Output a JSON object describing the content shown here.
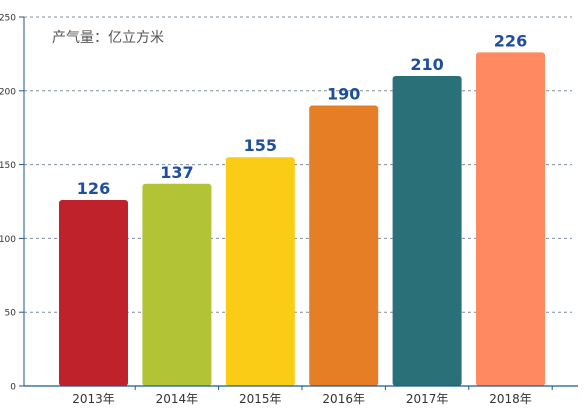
{
  "unit_label": "产气量：亿立方米",
  "colors": {
    "axis": "#1f5a8f",
    "grid": "#7f8f9f",
    "tick_text": "#333333",
    "value_text": "#1f4e9c",
    "bars": [
      "#c0222b",
      "#b3c336",
      "#fbcc15",
      "#e67e26",
      "#2a7079",
      "#ff8a62"
    ]
  },
  "chart_data": {
    "type": "bar",
    "title": "",
    "xlabel": "",
    "ylabel": "",
    "categories": [
      "2013年",
      "2014年",
      "2015年",
      "2016年",
      "2017年",
      "2018年"
    ],
    "values": [
      126,
      137,
      155,
      190,
      210,
      226
    ],
    "ylim": [
      0,
      250
    ],
    "yticks": [
      0,
      50,
      100,
      150,
      200,
      250
    ],
    "grid": true,
    "legend": "none"
  }
}
